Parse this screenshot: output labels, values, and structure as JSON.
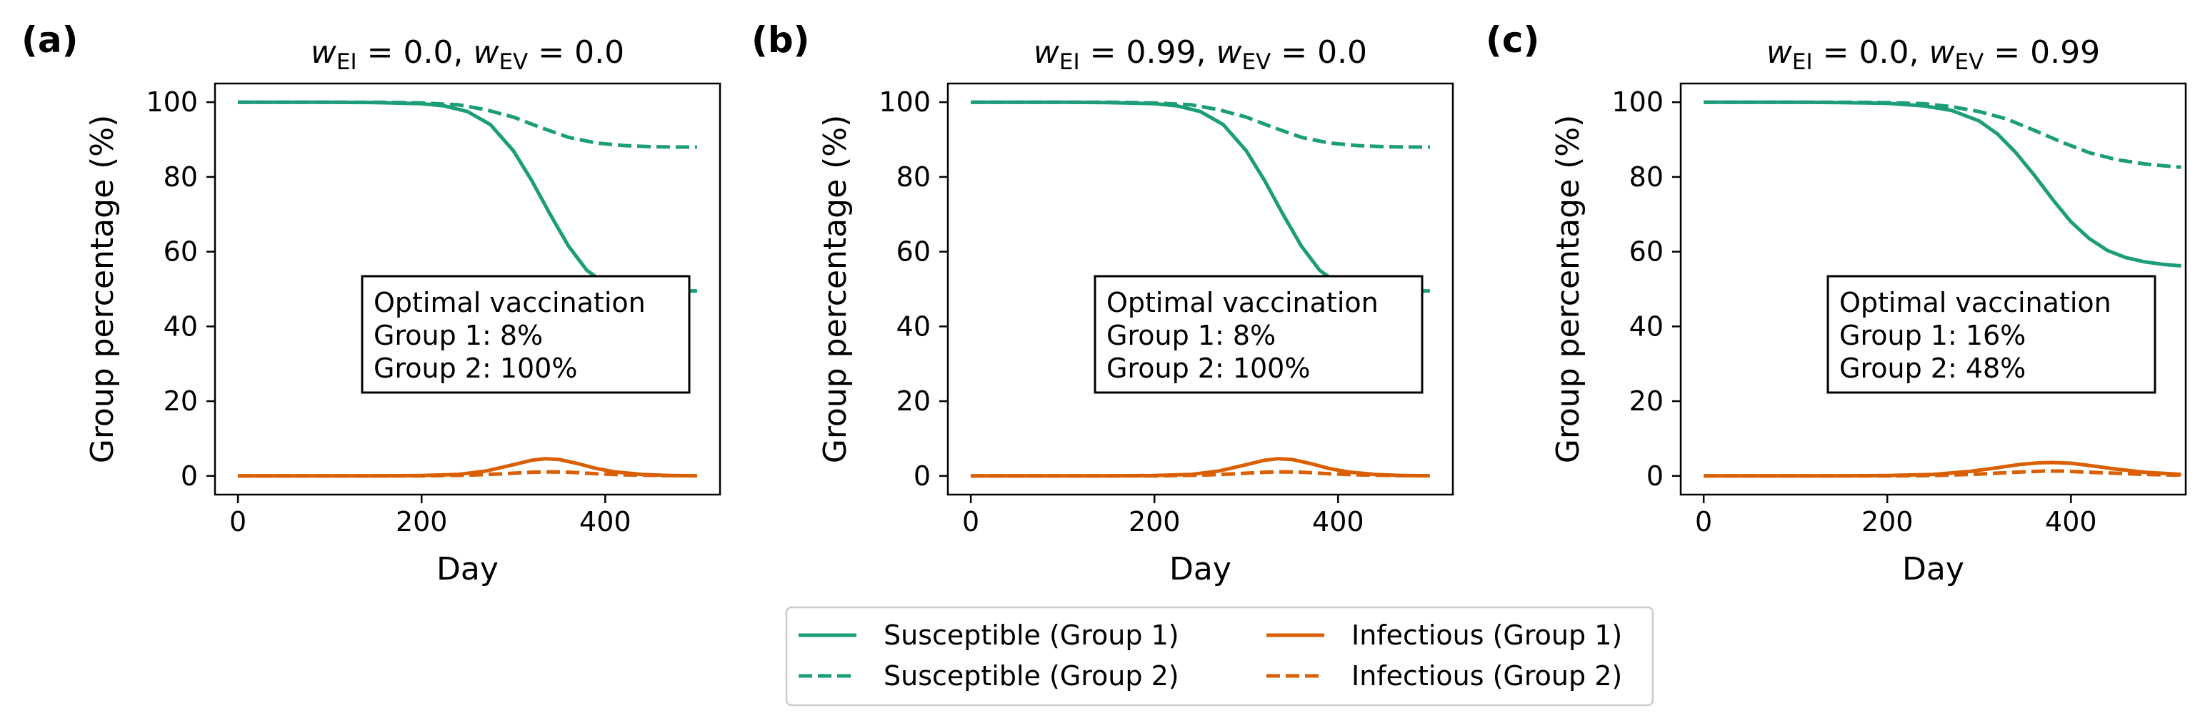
{
  "chart_data": [
    {
      "type": "line",
      "panel_label": "(a)",
      "title": {
        "pre1": "w",
        "sub1": "EI",
        "mid": " = 0.0, ",
        "pre2": "w",
        "sub2": "EV",
        "post": " = 0.0"
      },
      "xlabel": "Day",
      "ylabel": "Group percentage (%)",
      "xlim": [
        -25,
        525
      ],
      "ylim": [
        -5,
        105
      ],
      "xticks": [
        0,
        200,
        400
      ],
      "yticks": [
        0,
        20,
        40,
        60,
        80,
        100
      ],
      "annotation": [
        "Optimal vaccination",
        "Group 1: 8%",
        "Group 2: 100%"
      ],
      "series": [
        {
          "name": "Susceptible (Group 1)",
          "color": "#1b9e77",
          "style": "solid",
          "x": [
            0,
            100,
            150,
            200,
            225,
            250,
            275,
            300,
            320,
            340,
            360,
            380,
            400,
            420,
            440,
            460,
            480,
            500
          ],
          "y": [
            100,
            100,
            99.9,
            99.6,
            99.0,
            97.5,
            94.0,
            87.0,
            79.0,
            70.0,
            61.5,
            55.0,
            51.5,
            50.2,
            49.8,
            49.6,
            49.5,
            49.5
          ]
        },
        {
          "name": "Susceptible (Group 2)",
          "color": "#1b9e77",
          "style": "dashed",
          "x": [
            0,
            150,
            200,
            240,
            270,
            300,
            330,
            360,
            390,
            420,
            450,
            480,
            500
          ],
          "y": [
            100,
            100,
            99.8,
            99.3,
            98.0,
            96.0,
            93.2,
            90.6,
            89.1,
            88.4,
            88.1,
            88.0,
            88.0
          ]
        },
        {
          "name": "Infectious (Group 1)",
          "color": "#d95f02",
          "style": "solid",
          "x": [
            0,
            150,
            200,
            240,
            270,
            300,
            320,
            335,
            350,
            370,
            390,
            410,
            440,
            470,
            500
          ],
          "y": [
            0,
            0,
            0.1,
            0.4,
            1.3,
            3.0,
            4.2,
            4.6,
            4.4,
            3.3,
            2.0,
            1.1,
            0.4,
            0.1,
            0.05
          ]
        },
        {
          "name": "Infectious (Group 2)",
          "color": "#d95f02",
          "style": "dashed",
          "x": [
            0,
            200,
            250,
            290,
            320,
            340,
            360,
            390,
            420,
            460,
            500
          ],
          "y": [
            0,
            0,
            0.2,
            0.6,
            1.0,
            1.1,
            1.0,
            0.6,
            0.3,
            0.1,
            0.05
          ]
        }
      ]
    },
    {
      "type": "line",
      "panel_label": "(b)",
      "title": {
        "pre1": "w",
        "sub1": "EI",
        "mid": " = 0.99, ",
        "pre2": "w",
        "sub2": "EV",
        "post": " = 0.0"
      },
      "xlabel": "Day",
      "ylabel": "Group percentage (%)",
      "xlim": [
        -25,
        525
      ],
      "ylim": [
        -5,
        105
      ],
      "xticks": [
        0,
        200,
        400
      ],
      "yticks": [
        0,
        20,
        40,
        60,
        80,
        100
      ],
      "annotation": [
        "Optimal vaccination",
        "Group 1: 8%",
        "Group 2: 100%"
      ],
      "series": [
        {
          "name": "Susceptible (Group 1)",
          "color": "#1b9e77",
          "style": "solid",
          "x": [
            0,
            100,
            150,
            200,
            225,
            250,
            275,
            300,
            320,
            340,
            360,
            380,
            400,
            420,
            440,
            460,
            480,
            500
          ],
          "y": [
            100,
            100,
            99.9,
            99.6,
            99.0,
            97.5,
            94.0,
            87.0,
            79.0,
            70.0,
            61.5,
            55.0,
            51.5,
            50.2,
            49.8,
            49.6,
            49.5,
            49.5
          ]
        },
        {
          "name": "Susceptible (Group 2)",
          "color": "#1b9e77",
          "style": "dashed",
          "x": [
            0,
            150,
            200,
            240,
            270,
            300,
            330,
            360,
            390,
            420,
            450,
            480,
            500
          ],
          "y": [
            100,
            100,
            99.8,
            99.3,
            98.0,
            96.0,
            93.2,
            90.6,
            89.1,
            88.4,
            88.1,
            88.0,
            88.0
          ]
        },
        {
          "name": "Infectious (Group 1)",
          "color": "#d95f02",
          "style": "solid",
          "x": [
            0,
            150,
            200,
            240,
            270,
            300,
            320,
            335,
            350,
            370,
            390,
            410,
            440,
            470,
            500
          ],
          "y": [
            0,
            0,
            0.1,
            0.4,
            1.3,
            3.0,
            4.2,
            4.6,
            4.4,
            3.3,
            2.0,
            1.1,
            0.4,
            0.1,
            0.05
          ]
        },
        {
          "name": "Infectious (Group 2)",
          "color": "#d95f02",
          "style": "dashed",
          "x": [
            0,
            200,
            250,
            290,
            320,
            340,
            360,
            390,
            420,
            460,
            500
          ],
          "y": [
            0,
            0,
            0.2,
            0.6,
            1.0,
            1.1,
            1.0,
            0.6,
            0.3,
            0.1,
            0.05
          ]
        }
      ]
    },
    {
      "type": "line",
      "panel_label": "(c)",
      "title": {
        "pre1": "w",
        "sub1": "EI",
        "mid": " = 0.0, ",
        "pre2": "w",
        "sub2": "EV",
        "post": " = 0.99"
      },
      "xlabel": "Day",
      "ylabel": "Group percentage (%)",
      "xlim": [
        -25,
        525
      ],
      "ylim": [
        -5,
        105
      ],
      "xticks": [
        0,
        200,
        400
      ],
      "yticks": [
        0,
        20,
        40,
        60,
        80,
        100
      ],
      "annotation": [
        "Optimal vaccination",
        "Group 1: 16%",
        "Group 2: 48%"
      ],
      "series": [
        {
          "name": "Susceptible (Group 1)",
          "color": "#1b9e77",
          "style": "solid",
          "x": [
            0,
            100,
            150,
            200,
            240,
            270,
            300,
            320,
            340,
            360,
            380,
            400,
            420,
            440,
            460,
            480,
            500,
            520
          ],
          "y": [
            100,
            100,
            99.9,
            99.7,
            99.0,
            97.8,
            95.0,
            91.5,
            86.5,
            80.5,
            74.0,
            68.0,
            63.5,
            60.3,
            58.4,
            57.3,
            56.6,
            56.2
          ]
        },
        {
          "name": "Susceptible (Group 2)",
          "color": "#1b9e77",
          "style": "dashed",
          "x": [
            0,
            150,
            200,
            240,
            270,
            300,
            330,
            360,
            390,
            420,
            450,
            480,
            500,
            520
          ],
          "y": [
            100,
            100,
            99.9,
            99.6,
            98.8,
            97.5,
            95.5,
            92.5,
            89.3,
            86.5,
            84.6,
            83.5,
            83.0,
            82.6
          ]
        },
        {
          "name": "Infectious (Group 1)",
          "color": "#d95f02",
          "style": "solid",
          "x": [
            0,
            150,
            200,
            250,
            290,
            320,
            345,
            365,
            380,
            400,
            420,
            450,
            480,
            520
          ],
          "y": [
            0,
            0,
            0.1,
            0.4,
            1.2,
            2.2,
            3.1,
            3.5,
            3.6,
            3.4,
            2.8,
            1.8,
            1.0,
            0.4
          ]
        },
        {
          "name": "Infectious (Group 2)",
          "color": "#d95f02",
          "style": "dashed",
          "x": [
            0,
            200,
            250,
            300,
            340,
            370,
            390,
            410,
            440,
            480,
            520
          ],
          "y": [
            0,
            0,
            0.1,
            0.5,
            1.0,
            1.3,
            1.3,
            1.1,
            0.8,
            0.4,
            0.2
          ]
        }
      ]
    }
  ],
  "legend": {
    "placement": "bottom-center",
    "entries": [
      {
        "label": "Susceptible (Group 1)",
        "color": "#1b9e77",
        "style": "solid"
      },
      {
        "label": "Infectious (Group 1)",
        "color": "#d95f02",
        "style": "solid"
      },
      {
        "label": "Susceptible (Group 2)",
        "color": "#1b9e77",
        "style": "dashed"
      },
      {
        "label": "Infectious (Group 2)",
        "color": "#d95f02",
        "style": "dashed"
      }
    ]
  }
}
